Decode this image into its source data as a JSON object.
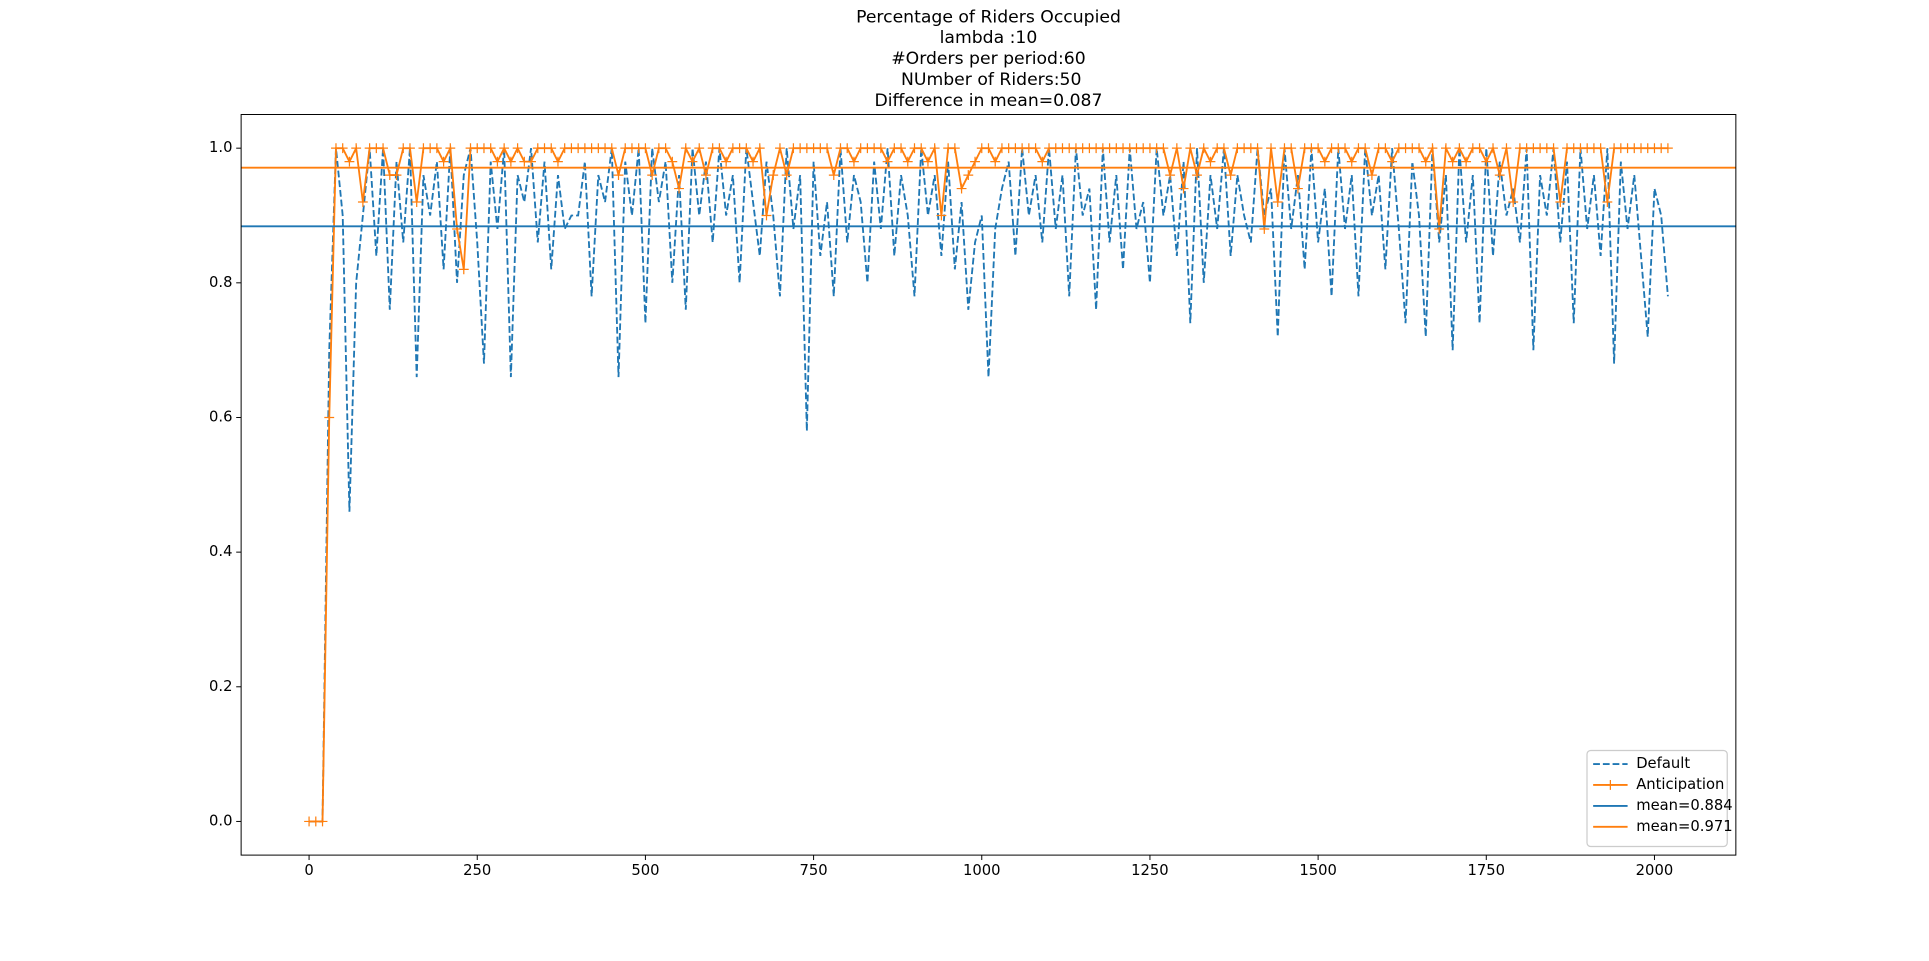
{
  "chart_data": {
    "type": "line",
    "title": [
      "Percentage of Riders Occupied",
      "lambda :10",
      "#Orders per period:60",
      " NUmber of Riders:50",
      "Difference in mean=0.087"
    ],
    "x": [
      0,
      10,
      20,
      30,
      40,
      50,
      60,
      70,
      80,
      90,
      100,
      110,
      120,
      130,
      140,
      150,
      160,
      170,
      180,
      190,
      200,
      210,
      220,
      230,
      240,
      250,
      260,
      270,
      280,
      290,
      300,
      310,
      320,
      330,
      340,
      350,
      360,
      370,
      380,
      390,
      400,
      410,
      420,
      430,
      440,
      450,
      460,
      470,
      480,
      490,
      500,
      510,
      520,
      530,
      540,
      550,
      560,
      570,
      580,
      590,
      600,
      610,
      620,
      630,
      640,
      650,
      660,
      670,
      680,
      690,
      700,
      710,
      720,
      730,
      740,
      750,
      760,
      770,
      780,
      790,
      800,
      810,
      820,
      830,
      840,
      850,
      860,
      870,
      880,
      890,
      900,
      910,
      920,
      930,
      940,
      950,
      960,
      970,
      980,
      990,
      1000,
      1010,
      1020,
      1030,
      1040,
      1050,
      1060,
      1070,
      1080,
      1090,
      1100,
      1110,
      1120,
      1130,
      1140,
      1150,
      1160,
      1170,
      1180,
      1190,
      1200,
      1210,
      1220,
      1230,
      1240,
      1250,
      1260,
      1270,
      1280,
      1290,
      1300,
      1310,
      1320,
      1330,
      1340,
      1350,
      1360,
      1370,
      1380,
      1390,
      1400,
      1410,
      1420,
      1430,
      1440,
      1450,
      1460,
      1470,
      1480,
      1490,
      1500,
      1510,
      1520,
      1530,
      1540,
      1550,
      1560,
      1570,
      1580,
      1590,
      1600,
      1610,
      1620,
      1630,
      1640,
      1650,
      1660,
      1670,
      1680,
      1690,
      1700,
      1710,
      1720,
      1730,
      1740,
      1750,
      1760,
      1770,
      1780,
      1790,
      1800,
      1810,
      1820,
      1830,
      1840,
      1850,
      1860,
      1870,
      1880,
      1890,
      1900,
      1910,
      1920,
      1930,
      1940,
      1950,
      1960,
      1970,
      1980,
      1990,
      2000,
      2010,
      2020
    ],
    "series": [
      {
        "name": "Default",
        "color": "#1f77b4",
        "style": "dashed",
        "values": [
          0,
          0,
          0,
          0.7,
          1.0,
          0.9,
          0.46,
          0.8,
          0.9,
          1.0,
          0.84,
          1.0,
          0.76,
          0.98,
          0.86,
          1.0,
          0.66,
          0.96,
          0.9,
          0.98,
          0.82,
          1.0,
          0.8,
          0.96,
          1.0,
          0.86,
          0.68,
          0.98,
          0.88,
          1.0,
          0.66,
          0.96,
          0.92,
          1.0,
          0.86,
          0.98,
          0.82,
          0.96,
          0.88,
          0.9,
          0.9,
          0.98,
          0.78,
          0.96,
          0.92,
          1.0,
          0.66,
          0.98,
          0.9,
          1.0,
          0.74,
          1.0,
          0.92,
          0.98,
          0.8,
          0.96,
          0.76,
          1.0,
          0.9,
          0.98,
          0.86,
          1.0,
          0.9,
          0.96,
          0.8,
          1.0,
          0.92,
          0.84,
          0.98,
          0.9,
          0.78,
          1.0,
          0.88,
          0.96,
          0.58,
          0.98,
          0.84,
          0.92,
          0.78,
          1.0,
          0.86,
          0.96,
          0.92,
          0.8,
          0.98,
          0.88,
          1.0,
          0.84,
          0.96,
          0.9,
          0.78,
          1.0,
          0.9,
          0.96,
          0.84,
          0.98,
          0.82,
          0.92,
          0.76,
          0.86,
          0.9,
          0.66,
          0.88,
          0.94,
          0.98,
          0.84,
          1.0,
          0.9,
          0.96,
          0.86,
          1.0,
          0.88,
          0.96,
          0.78,
          1.0,
          0.9,
          0.94,
          0.76,
          1.0,
          0.86,
          0.96,
          0.82,
          1.0,
          0.88,
          0.92,
          0.8,
          1.0,
          0.9,
          0.96,
          0.84,
          0.98,
          0.74,
          1.0,
          0.8,
          0.96,
          0.88,
          1.0,
          0.84,
          0.96,
          0.9,
          0.86,
          1.0,
          0.9,
          0.94,
          0.72,
          1.0,
          0.88,
          0.96,
          0.82,
          1.0,
          0.86,
          0.94,
          0.78,
          1.0,
          0.88,
          0.96,
          0.78,
          1.0,
          0.9,
          0.96,
          0.82,
          1.0,
          0.88,
          0.74,
          0.98,
          0.9,
          0.72,
          1.0,
          0.86,
          0.96,
          0.7,
          1.0,
          0.86,
          0.96,
          0.74,
          1.0,
          0.84,
          0.98,
          0.9,
          0.94,
          0.86,
          1.0,
          0.7,
          0.96,
          0.9,
          1.0,
          0.86,
          0.98,
          0.74,
          1.0,
          0.88,
          0.96,
          0.84,
          1.0,
          0.68,
          0.98,
          0.88,
          0.96,
          0.84,
          0.72,
          0.94,
          0.9,
          0.78
        ]
      },
      {
        "name": "Anticipation",
        "color": "#ff7f0e",
        "style": "solid",
        "marker": "+",
        "values": [
          0,
          0,
          0,
          0.6,
          1.0,
          1.0,
          0.98,
          1.0,
          0.92,
          1.0,
          1.0,
          1.0,
          0.96,
          0.96,
          1.0,
          1.0,
          0.92,
          1.0,
          1.0,
          1.0,
          0.98,
          1.0,
          0.88,
          0.82,
          1.0,
          1.0,
          1.0,
          1.0,
          0.98,
          1.0,
          0.98,
          1.0,
          0.98,
          0.98,
          1.0,
          1.0,
          1.0,
          0.98,
          1.0,
          1.0,
          1.0,
          1.0,
          1.0,
          1.0,
          1.0,
          1.0,
          0.96,
          1.0,
          1.0,
          1.0,
          1.0,
          0.96,
          1.0,
          1.0,
          0.98,
          0.94,
          1.0,
          0.98,
          1.0,
          0.96,
          1.0,
          1.0,
          0.98,
          1.0,
          1.0,
          1.0,
          0.98,
          1.0,
          0.9,
          0.96,
          1.0,
          0.96,
          1.0,
          1.0,
          1.0,
          1.0,
          1.0,
          1.0,
          0.96,
          1.0,
          1.0,
          0.98,
          1.0,
          1.0,
          1.0,
          1.0,
          0.98,
          1.0,
          1.0,
          0.98,
          1.0,
          1.0,
          0.98,
          1.0,
          0.9,
          1.0,
          1.0,
          0.94,
          0.96,
          0.98,
          1.0,
          1.0,
          0.98,
          1.0,
          1.0,
          1.0,
          1.0,
          1.0,
          1.0,
          0.98,
          1.0,
          1.0,
          1.0,
          1.0,
          1.0,
          1.0,
          1.0,
          1.0,
          1.0,
          1.0,
          1.0,
          1.0,
          1.0,
          1.0,
          1.0,
          1.0,
          1.0,
          1.0,
          0.96,
          1.0,
          0.94,
          1.0,
          0.96,
          1.0,
          0.98,
          1.0,
          1.0,
          0.96,
          1.0,
          1.0,
          1.0,
          1.0,
          0.88,
          1.0,
          0.92,
          1.0,
          1.0,
          0.94,
          1.0,
          1.0,
          1.0,
          0.98,
          1.0,
          1.0,
          1.0,
          0.98,
          1.0,
          1.0,
          0.96,
          1.0,
          1.0,
          0.98,
          1.0,
          1.0,
          1.0,
          1.0,
          0.98,
          1.0,
          0.88,
          1.0,
          0.98,
          1.0,
          0.98,
          1.0,
          1.0,
          0.98,
          1.0,
          0.96,
          1.0,
          0.92,
          1.0,
          1.0,
          1.0,
          1.0,
          1.0,
          1.0,
          0.92,
          1.0,
          1.0,
          1.0,
          1.0,
          1.0,
          1.0,
          0.92,
          1.0,
          1.0,
          1.0,
          1.0,
          1.0,
          1.0,
          1.0,
          1.0,
          1.0
        ]
      }
    ],
    "mean_lines": [
      {
        "name": "mean=0.884",
        "value": 0.884,
        "color": "#1f77b4"
      },
      {
        "name": "mean=0.971",
        "value": 0.971,
        "color": "#ff7f0e"
      }
    ],
    "xlim": [
      -101,
      2121
    ],
    "ylim": [
      -0.05,
      1.05
    ],
    "xticks": [
      0,
      250,
      500,
      750,
      1000,
      1250,
      1500,
      1750,
      2000
    ],
    "yticks": [
      {
        "value": 0,
        "label": "0.0"
      },
      0.2,
      0.4,
      0.6,
      0.8,
      {
        "value": 1,
        "label": "1.0"
      }
    ],
    "grid": false,
    "legend": "lower right"
  }
}
